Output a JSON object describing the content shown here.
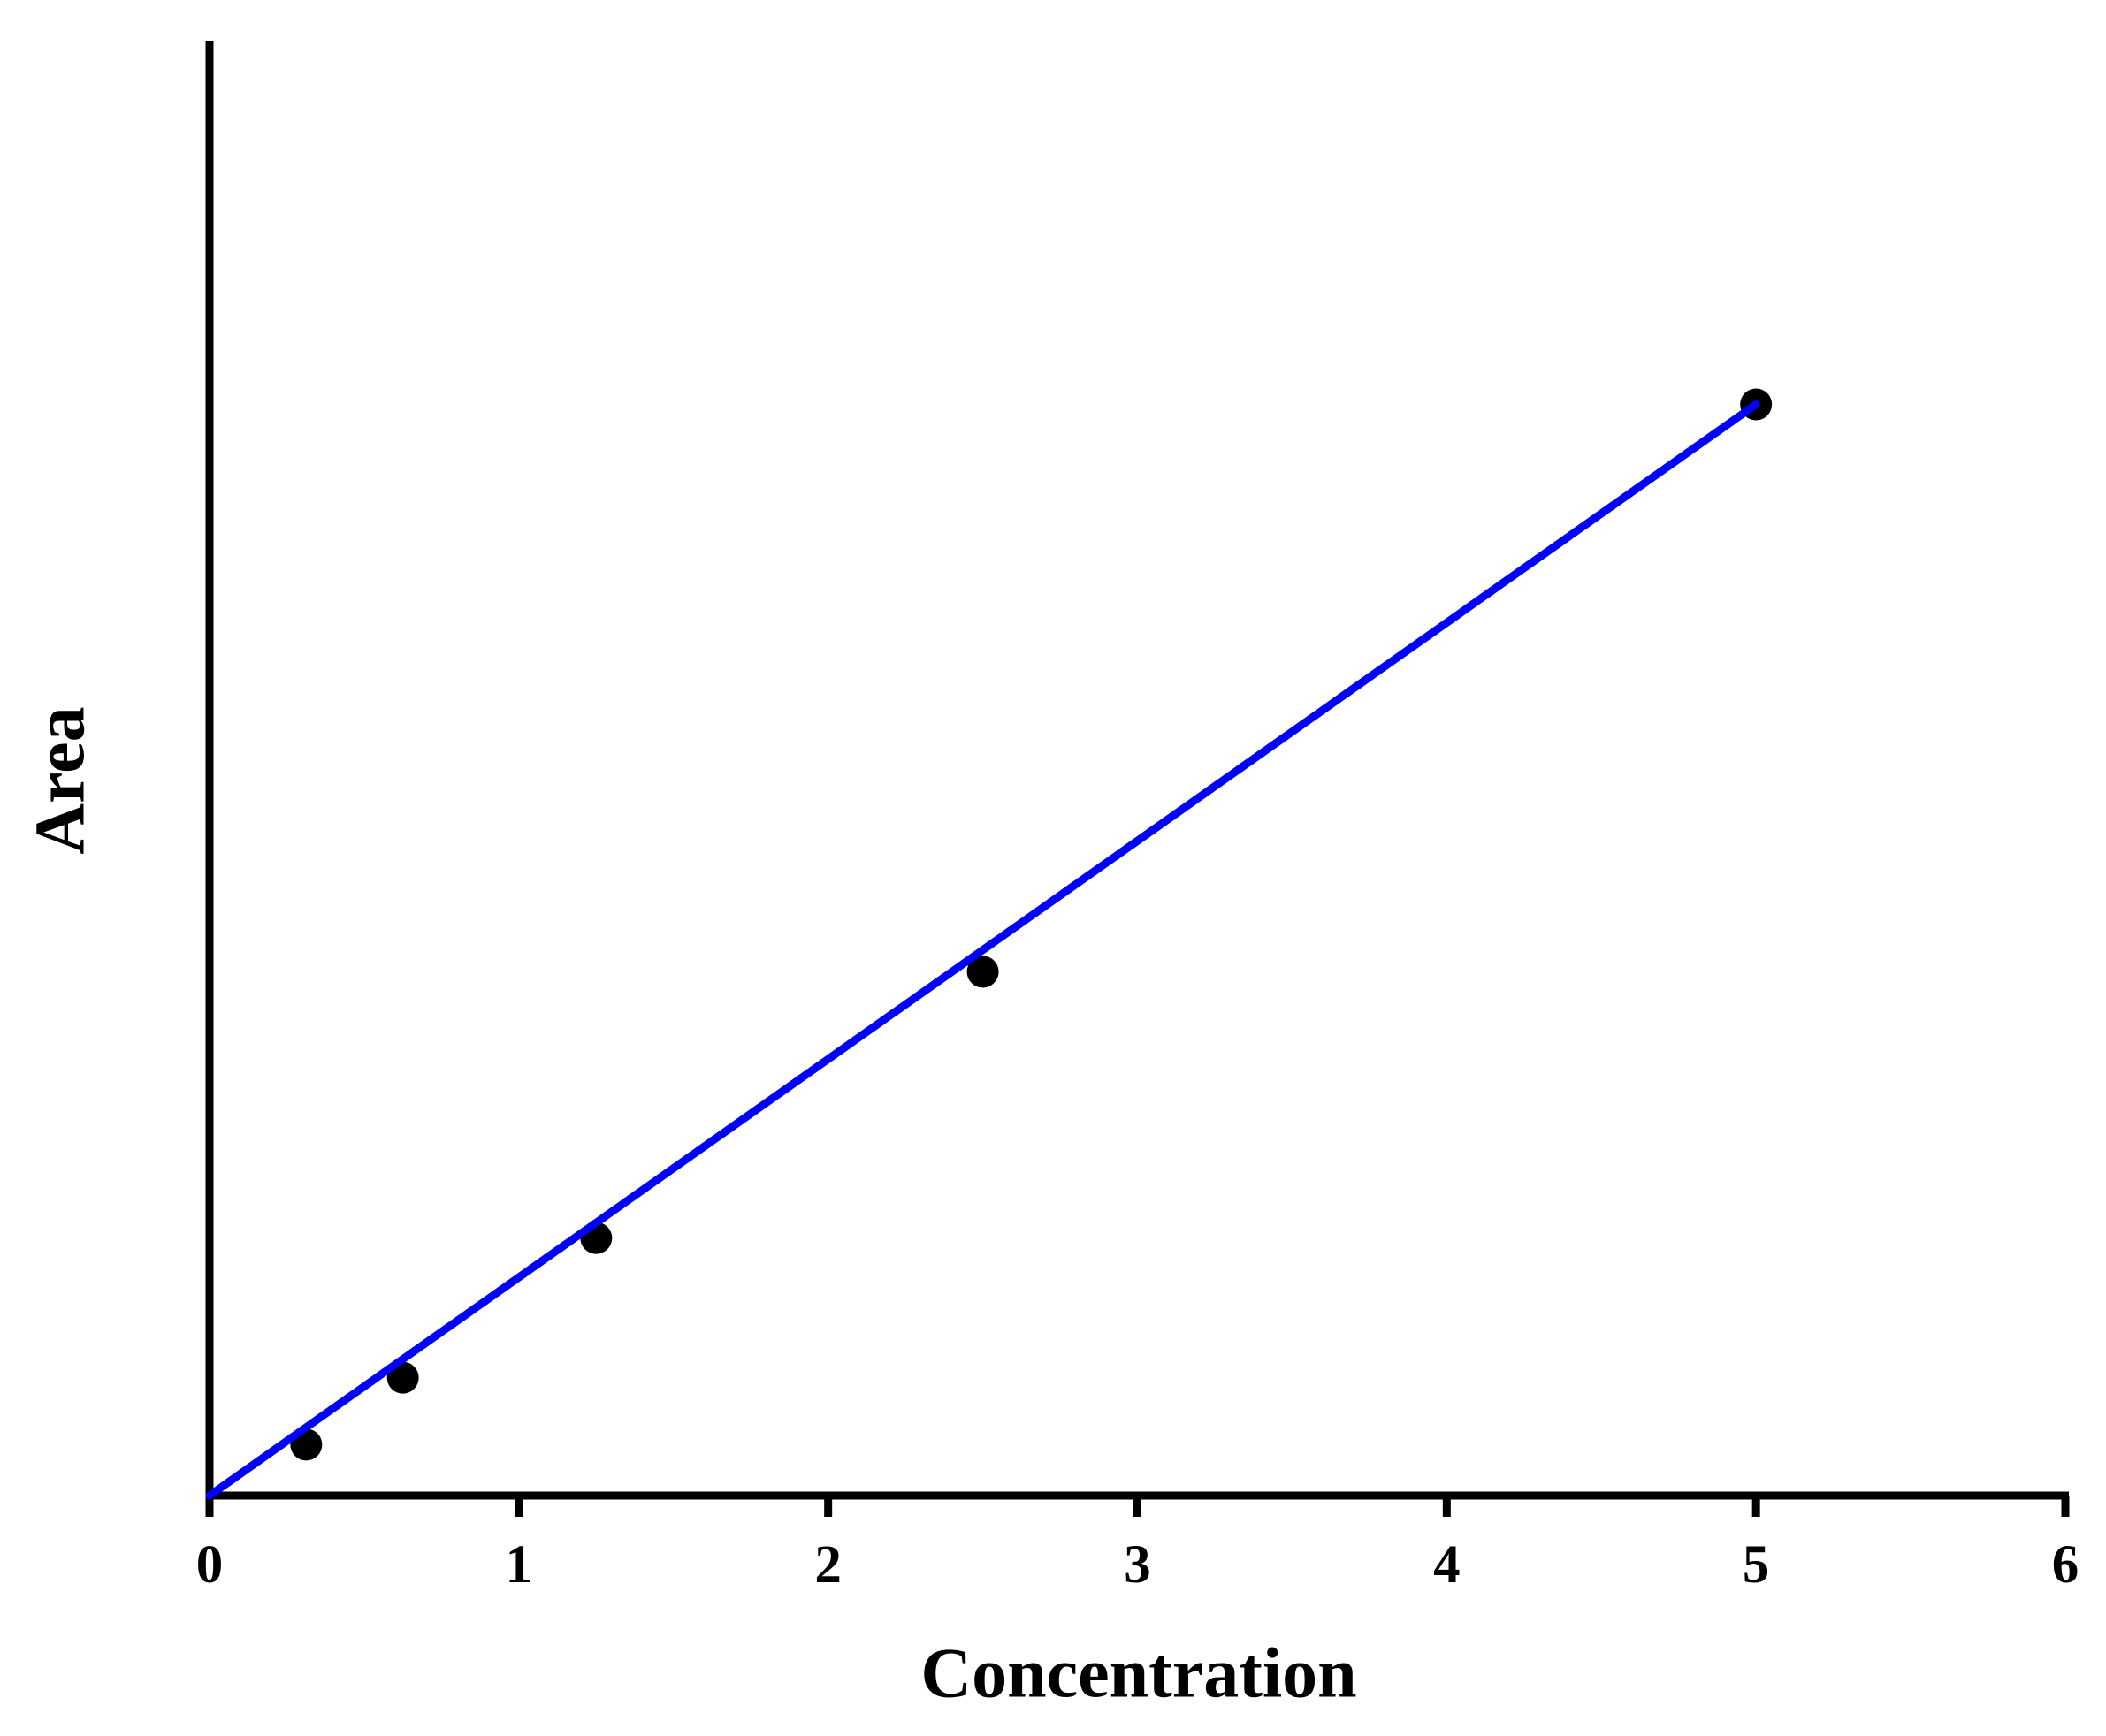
{
  "chart_data": {
    "type": "scatter",
    "x_label": "Concentration",
    "y_label": "Area",
    "xlim": [
      0,
      6
    ],
    "xticks": [
      0,
      1,
      2,
      3,
      4,
      5,
      6
    ],
    "ylim": [
      0,
      100
    ],
    "series": [
      {
        "style": "markers",
        "color": "#000000",
        "x": [
          0.3125,
          0.625,
          1.25,
          2.5,
          5
        ],
        "values": [
          3.5,
          8.1,
          17.7,
          36.0,
          75.0
        ]
      },
      {
        "style": "line",
        "color": "#0000ff",
        "x": [
          0,
          5
        ],
        "values": [
          0,
          75.0
        ]
      }
    ]
  }
}
